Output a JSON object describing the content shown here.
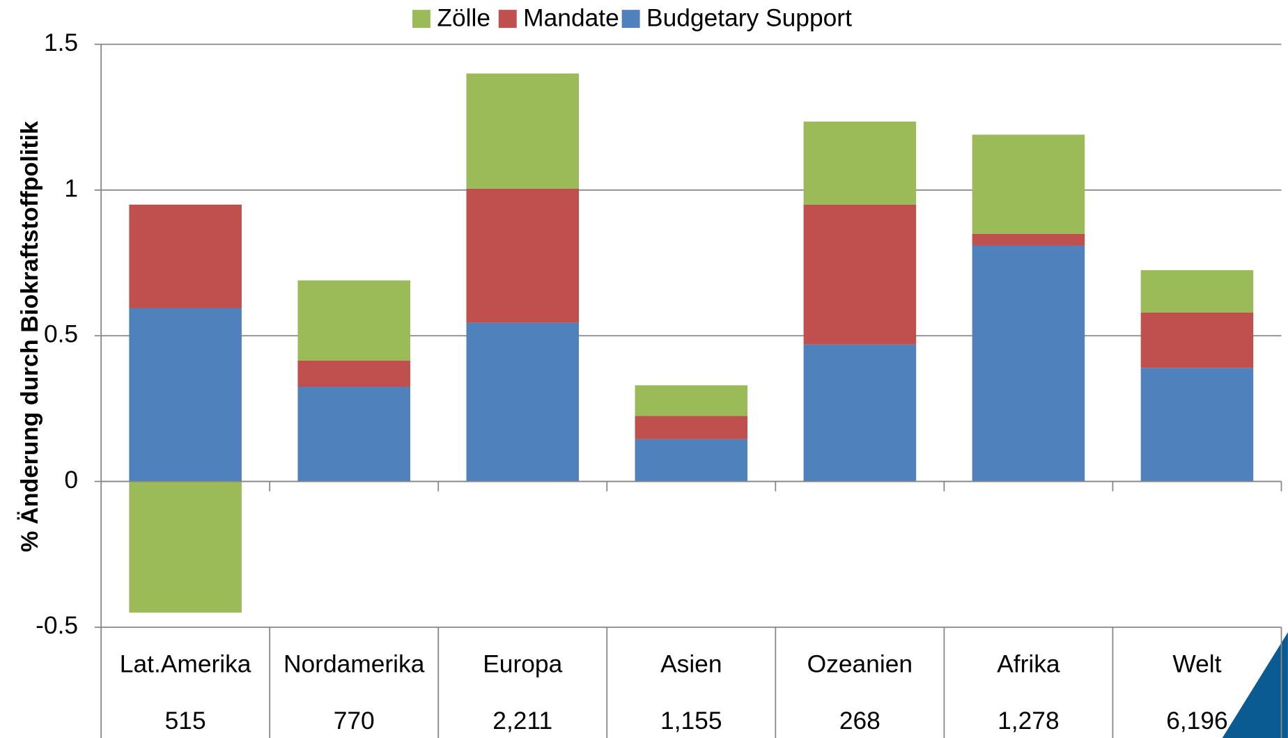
{
  "chart_data": {
    "type": "stacked-bar",
    "y_label": "% Änderung durch Biokraftstoffpolitik",
    "categories": [
      "Lat.Amerika",
      "Nordamerika",
      "Europa",
      "Asien",
      "Ozeanien",
      "Afrika",
      "Welt"
    ],
    "category_sublabels": [
      "515",
      "770",
      "2,211",
      "1,155",
      "268",
      "1,278",
      "6,196"
    ],
    "series": [
      {
        "name": "Zölle",
        "color": "#9bbb59",
        "values": [
          -0.45,
          0.275,
          0.395,
          0.105,
          0.285,
          0.34,
          0.145
        ]
      },
      {
        "name": "Mandate",
        "color": "#c0504d",
        "values": [
          0.355,
          0.09,
          0.46,
          0.08,
          0.48,
          0.04,
          0.19
        ]
      },
      {
        "name": "Budgetary Support",
        "color": "#4f81bd",
        "values": [
          0.595,
          0.325,
          0.545,
          0.145,
          0.47,
          0.81,
          0.39
        ]
      }
    ],
    "ylim": [
      -0.5,
      1.5
    ],
    "yticks": [
      -0.5,
      0,
      0.5,
      1,
      1.5
    ],
    "grid": true,
    "legend": "top"
  }
}
